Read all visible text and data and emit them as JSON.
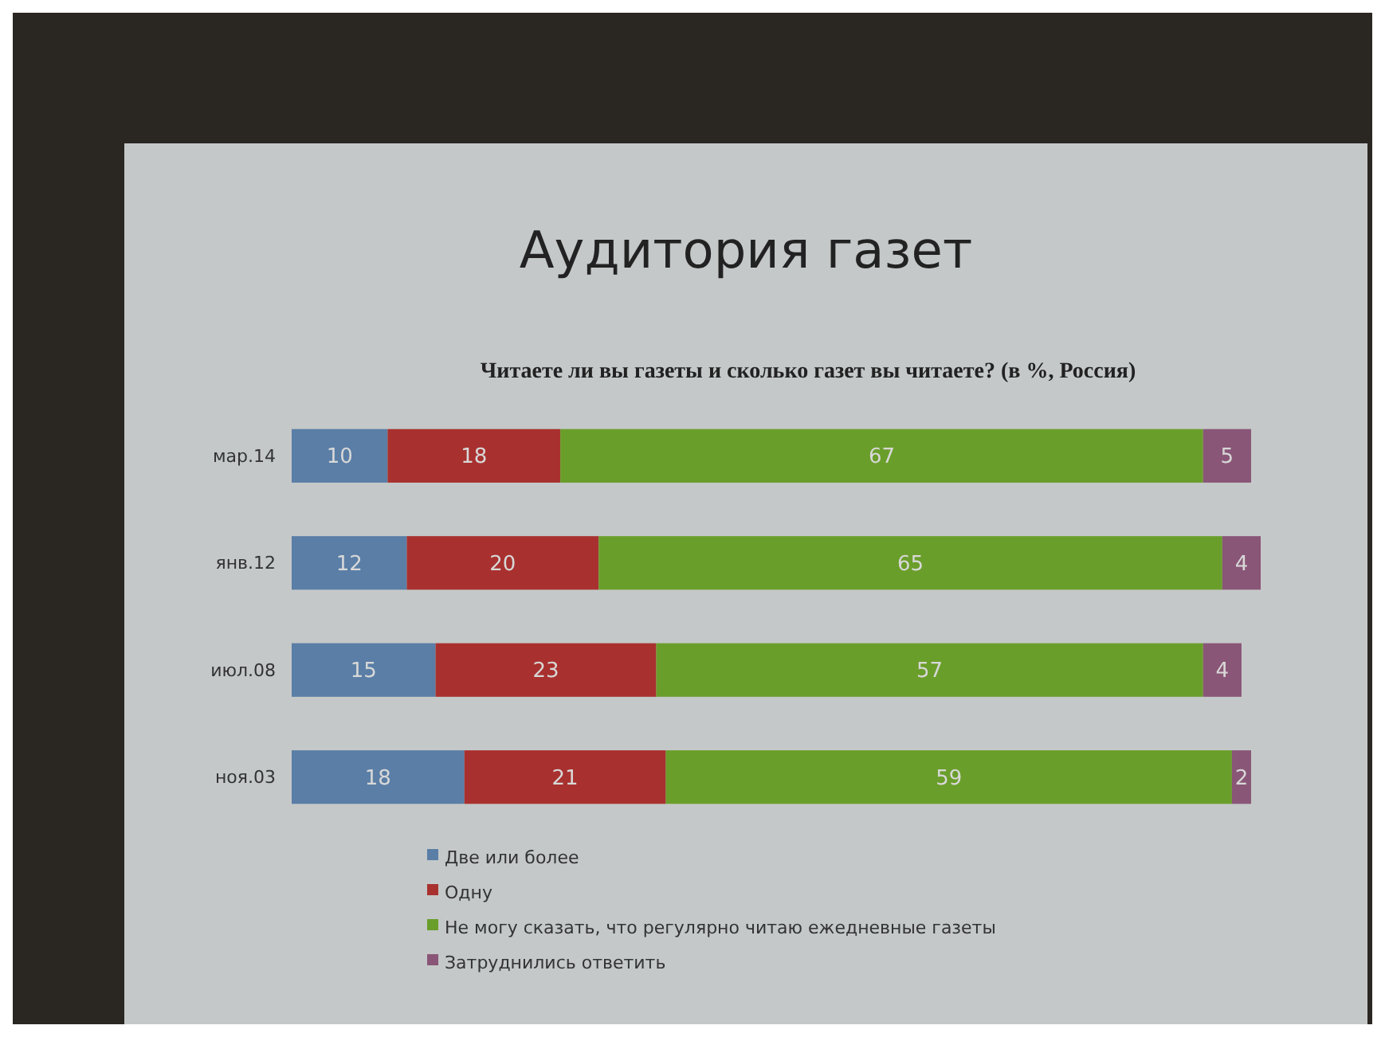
{
  "chart_data": {
    "type": "bar",
    "orientation": "horizontal",
    "stacked": true,
    "title": "Аудитория газет",
    "subtitle": "Читаете ли вы газеты и сколько газет вы читаете? (в %, Россия)",
    "categories": [
      "мар.14",
      "янв.12",
      "июл.08",
      "ноя.03"
    ],
    "series": [
      {
        "name": "Две или более",
        "color": "#5a7ea6",
        "values": [
          10,
          12,
          15,
          18
        ]
      },
      {
        "name": "Одну",
        "color": "#a8312f",
        "values": [
          18,
          20,
          23,
          21
        ]
      },
      {
        "name": "Не могу сказать, что регулярно читаю ежедневные газеты",
        "color": "#6a9e2a",
        "values": [
          67,
          65,
          57,
          59
        ]
      },
      {
        "name": "Затруднились ответить",
        "color": "#8a5677",
        "values": [
          5,
          4,
          4,
          2
        ]
      }
    ],
    "xlim": [
      0,
      101
    ],
    "tick_labels": "y",
    "data_labels": true,
    "legend": "bottom"
  }
}
